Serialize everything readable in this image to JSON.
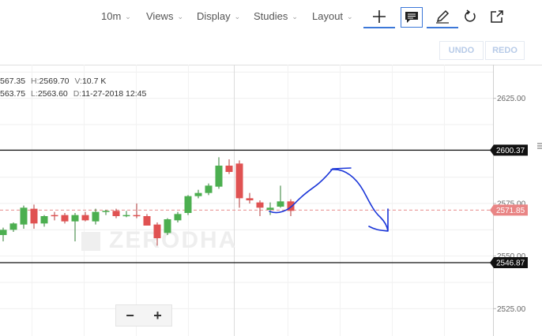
{
  "toolbar": {
    "interval": "10m",
    "views": "Views",
    "display": "Display",
    "studies": "Studies",
    "layout": "Layout"
  },
  "actions": {
    "undo": "UNDO",
    "redo": "REDO"
  },
  "ohlc": {
    "o_label": "",
    "o_value": "567.35",
    "h_label": "H:",
    "h_value": "2569.70",
    "v_label": "V:",
    "v_value": "10.7 K",
    "c_label": "",
    "c_value": "563.75",
    "l_label": "L:",
    "l_value": "2563.60",
    "d_label": "D:",
    "d_value": "11-27-2018 12:45"
  },
  "price_axis": {
    "ticks": [
      "2625.00",
      "2575.00",
      "2550.00",
      "2525.00"
    ],
    "labels": {
      "upper_line": "2600.37",
      "current": "2571.85",
      "lower_line": "2546.87"
    }
  },
  "watermark": "ZERODHA",
  "colors": {
    "up": "#4caf50",
    "down": "#e05252",
    "accent": "#3c78d8",
    "drawing": "#1a35d8"
  },
  "chart_data": {
    "type": "candlestick",
    "candles": [
      {
        "o": 2560.0,
        "h": 2563.5,
        "l": 2557.0,
        "c": 2562.5
      },
      {
        "o": 2562.5,
        "h": 2566.0,
        "l": 2561.5,
        "c": 2565.5
      },
      {
        "o": 2565.0,
        "h": 2574.0,
        "l": 2563.0,
        "c": 2573.0
      },
      {
        "o": 2572.5,
        "h": 2574.5,
        "l": 2563.0,
        "c": 2565.5
      },
      {
        "o": 2565.5,
        "h": 2569.5,
        "l": 2564.0,
        "c": 2569.0
      },
      {
        "o": 2569.5,
        "h": 2571.0,
        "l": 2567.0,
        "c": 2569.0
      },
      {
        "o": 2569.5,
        "h": 2570.5,
        "l": 2565.5,
        "c": 2566.5
      },
      {
        "o": 2566.5,
        "h": 2570.5,
        "l": 2557.0,
        "c": 2569.5
      },
      {
        "o": 2569.5,
        "h": 2571.0,
        "l": 2566.5,
        "c": 2567.0
      },
      {
        "o": 2566.5,
        "h": 2572.5,
        "l": 2565.0,
        "c": 2571.0
      },
      {
        "o": 2571.0,
        "h": 2572.0,
        "l": 2569.5,
        "c": 2571.5
      },
      {
        "o": 2571.5,
        "h": 2572.5,
        "l": 2568.0,
        "c": 2569.0
      },
      {
        "o": 2569.0,
        "h": 2571.5,
        "l": 2568.5,
        "c": 2569.5
      },
      {
        "o": 2569.5,
        "h": 2575.0,
        "l": 2568.0,
        "c": 2569.0
      },
      {
        "o": 2569.0,
        "h": 2570.0,
        "l": 2564.5,
        "c": 2564.5
      },
      {
        "o": 2565.0,
        "h": 2566.0,
        "l": 2555.0,
        "c": 2558.5
      },
      {
        "o": 2561.0,
        "h": 2568.0,
        "l": 2560.0,
        "c": 2567.5
      },
      {
        "o": 2567.0,
        "h": 2571.0,
        "l": 2566.0,
        "c": 2570.0
      },
      {
        "o": 2570.5,
        "h": 2579.0,
        "l": 2569.5,
        "c": 2578.5
      },
      {
        "o": 2578.5,
        "h": 2581.5,
        "l": 2577.5,
        "c": 2580.0
      },
      {
        "o": 2580.0,
        "h": 2584.5,
        "l": 2579.0,
        "c": 2583.5
      },
      {
        "o": 2583.0,
        "h": 2597.0,
        "l": 2582.0,
        "c": 2593.0
      },
      {
        "o": 2593.0,
        "h": 2596.0,
        "l": 2589.0,
        "c": 2590.0
      },
      {
        "o": 2594.0,
        "h": 2595.5,
        "l": 2573.0,
        "c": 2577.5
      },
      {
        "o": 2577.5,
        "h": 2580.0,
        "l": 2575.0,
        "c": 2576.5
      },
      {
        "o": 2575.5,
        "h": 2576.5,
        "l": 2569.0,
        "c": 2573.0
      },
      {
        "o": 2572.0,
        "h": 2575.5,
        "l": 2569.5,
        "c": 2573.0
      },
      {
        "o": 2573.5,
        "h": 2583.5,
        "l": 2573.0,
        "c": 2576.0
      },
      {
        "o": 2576.0,
        "h": 2577.0,
        "l": 2569.0,
        "c": 2571.5
      }
    ],
    "horizontal_lines": [
      2600.37,
      2546.87
    ],
    "current_price": 2571.85,
    "ylim": [
      2512.0,
      2641.0
    ],
    "grid": true
  }
}
